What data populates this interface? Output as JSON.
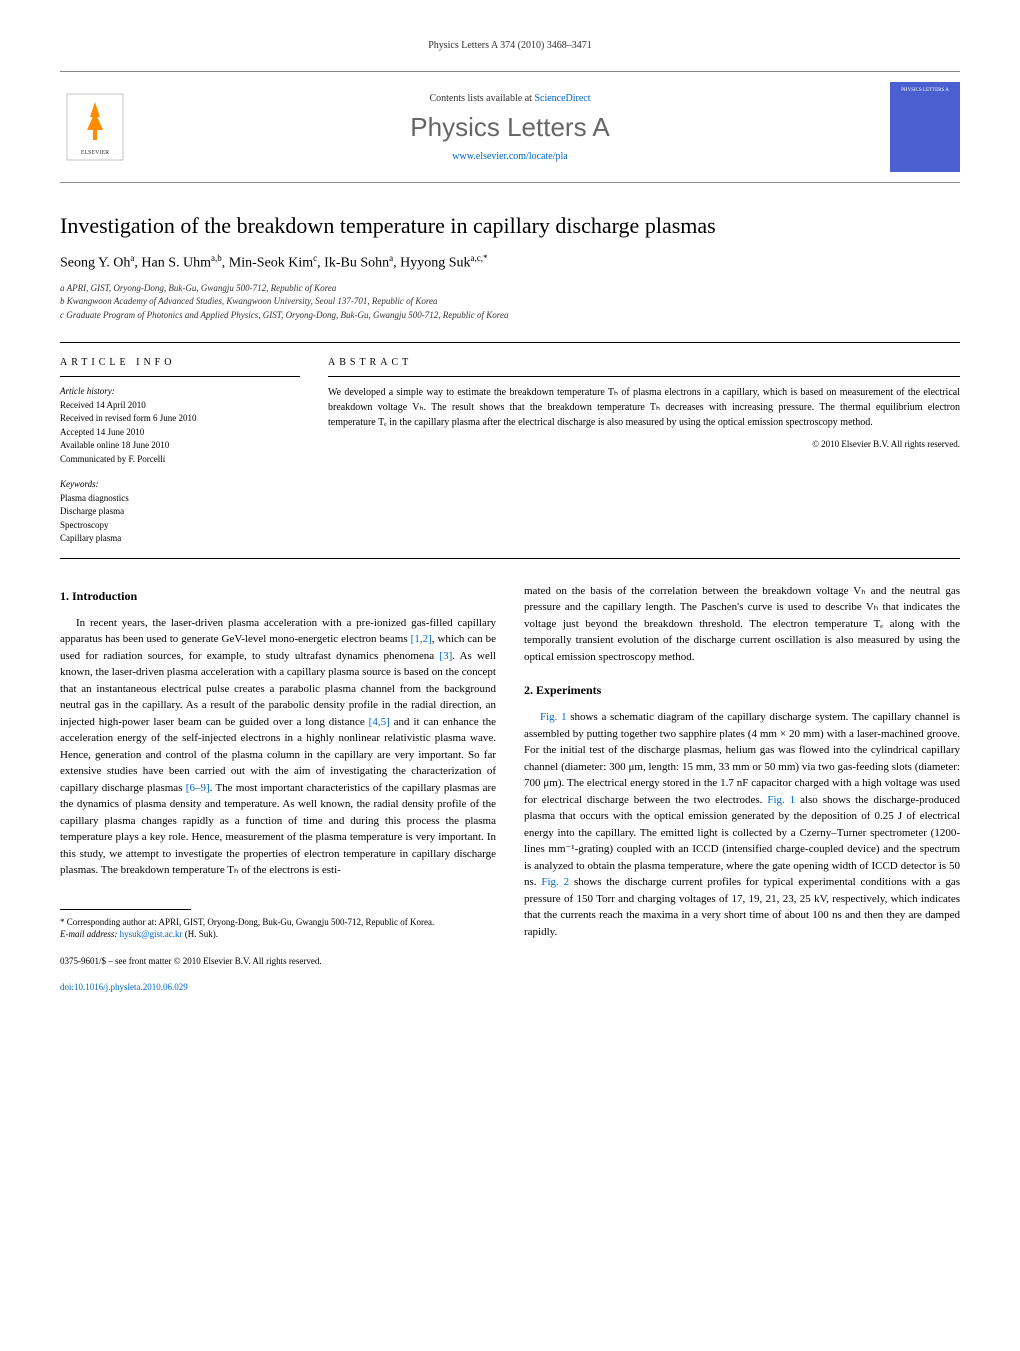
{
  "header": {
    "journal_ref": "Physics Letters A 374 (2010) 3468–3471"
  },
  "banner": {
    "contents_prefix": "Contents lists available at ",
    "contents_link": "ScienceDirect",
    "journal_title": "Physics Letters A",
    "journal_url": "www.elsevier.com/locate/pla",
    "cover_label": "PHYSICS LETTERS A"
  },
  "article": {
    "title": "Investigation of the breakdown temperature in capillary discharge plasmas",
    "authors_html": "Seong Y. Oh<sup>a</sup>, Han S. Uhm<sup>a,b</sup>, Min-Seok Kim<sup>c</sup>, Ik-Bu Sohn<sup>a</sup>, Hyyong Suk<sup>a,c,*</sup>",
    "affiliations": [
      "a APRI, GIST, Oryong-Dong, Buk-Gu, Gwangju 500-712, Republic of Korea",
      "b Kwangwoon Academy of Advanced Studies, Kwangwoon University, Seoul 137-701, Republic of Korea",
      "c Graduate Program of Photonics and Applied Physics, GIST, Oryong-Dong, Buk-Gu, Gwangju 500-712, Republic of Korea"
    ]
  },
  "info": {
    "heading": "ARTICLE INFO",
    "history_label": "Article history:",
    "history": [
      "Received 14 April 2010",
      "Received in revised form 6 June 2010",
      "Accepted 14 June 2010",
      "Available online 18 June 2010",
      "Communicated by F. Porcelli"
    ],
    "keywords_label": "Keywords:",
    "keywords": [
      "Plasma diagnostics",
      "Discharge plasma",
      "Spectroscopy",
      "Capillary plasma"
    ]
  },
  "abstract": {
    "heading": "ABSTRACT",
    "text": "We developed a simple way to estimate the breakdown temperature Tₕ of plasma electrons in a capillary, which is based on measurement of the electrical breakdown voltage Vₕ. The result shows that the breakdown temperature Tₕ decreases with increasing pressure. The thermal equilibrium electron temperature Tₑ in the capillary plasma after the electrical discharge is also measured by using the optical emission spectroscopy method.",
    "copyright": "© 2010 Elsevier B.V. All rights reserved."
  },
  "sections": {
    "intro_heading": "1. Introduction",
    "intro_p1": "In recent years, the laser-driven plasma acceleration with a pre-ionized gas-filled capillary apparatus has been used to generate GeV-level mono-energetic electron beams [1,2], which can be used for radiation sources, for example, to study ultrafast dynamics phenomena [3]. As well known, the laser-driven plasma acceleration with a capillary plasma source is based on the concept that an instantaneous electrical pulse creates a parabolic plasma channel from the background neutral gas in the capillary. As a result of the parabolic density profile in the radial direction, an injected high-power laser beam can be guided over a long distance [4,5] and it can enhance the acceleration energy of the self-injected electrons in a highly nonlinear relativistic plasma wave. Hence, generation and control of the plasma column in the capillary are very important. So far extensive studies have been carried out with the aim of investigating the characterization of capillary discharge plasmas [6–9]. The most important characteristics of the capillary plasmas are the dynamics of plasma density and temperature. As well known, the radial density profile of the capillary plasma changes rapidly as a function of time and during this process the plasma temperature plays a key role. Hence, measurement of the plasma temperature is very important. In this study, we attempt to investigate the properties of electron temperature in capillary discharge plasmas. The breakdown temperature Tₕ of the electrons is esti-",
    "intro_p2": "mated on the basis of the correlation between the breakdown voltage Vₕ and the neutral gas pressure and the capillary length. The Paschen's curve is used to describe Vₕ that indicates the voltage just beyond the breakdown threshold. The electron temperature Tₑ along with the temporally transient evolution of the discharge current oscillation is also measured by using the optical emission spectroscopy method.",
    "exp_heading": "2. Experiments",
    "exp_p1": "Fig. 1 shows a schematic diagram of the capillary discharge system. The capillary channel is assembled by putting together two sapphire plates (4 mm × 20 mm) with a laser-machined groove. For the initial test of the discharge plasmas, helium gas was flowed into the cylindrical capillary channel (diameter: 300 μm, length: 15 mm, 33 mm or 50 mm) via two gas-feeding slots (diameter: 700 μm). The electrical energy stored in the 1.7 nF capacitor charged with a high voltage was used for electrical discharge between the two electrodes. Fig. 1 also shows the discharge-produced plasma that occurs with the optical emission generated by the deposition of 0.25 J of electrical energy into the capillary. The emitted light is collected by a Czerny–Turner spectrometer (1200-lines mm⁻¹-grating) coupled with an ICCD (intensified charge-coupled device) and the spectrum is analyzed to obtain the plasma temperature, where the gate opening width of ICCD detector is 50 ns. Fig. 2 shows the discharge current profiles for typical experimental conditions with a gas pressure of 150 Torr and charging voltages of 17, 19, 21, 23, 25 kV, respectively, which indicates that the currents reach the maxima in a very short time of about 100 ns and then they are damped rapidly."
  },
  "footnote": {
    "corresponding": "* Corresponding author at: APRI, GIST, Oryong-Dong, Buk-Gu, Gwangju 500-712, Republic of Korea.",
    "email_label": "E-mail address: ",
    "email": "hysuk@gist.ac.kr",
    "email_name": " (H. Suk)."
  },
  "footer": {
    "issn": "0375-9601/$ – see front matter © 2010 Elsevier B.V. All rights reserved.",
    "doi": "doi:10.1016/j.physleta.2010.06.029"
  },
  "refs": {
    "r12": "[1,2]",
    "r3": "[3]",
    "r45": "[4,5]",
    "r69": "[6–9]",
    "fig1": "Fig. 1",
    "fig2": "Fig. 2"
  },
  "colors": {
    "link": "#0066cc",
    "cover_bg": "#4a5fd0",
    "elsevier": "#ff8c00"
  }
}
